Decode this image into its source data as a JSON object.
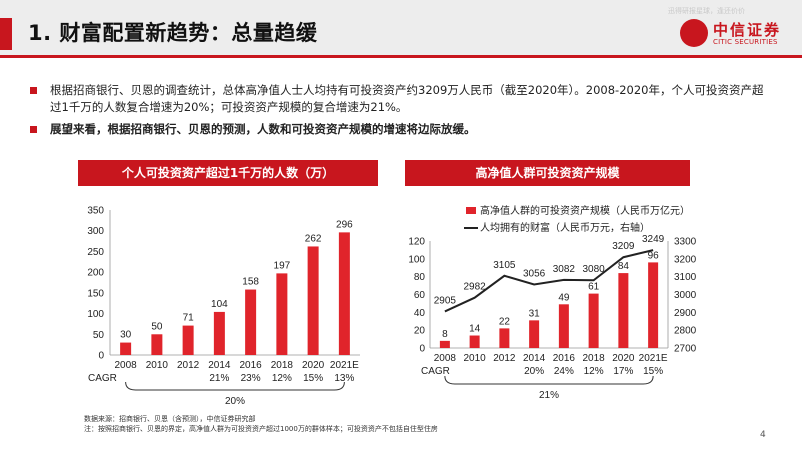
{
  "header": {
    "title": "1. 财富配置新趋势：总量趋缓",
    "watermark": "迅得研报星球，逢还价价",
    "logo_cn": "中信证券",
    "logo_en": "CITIC SECURITIES"
  },
  "bullets": [
    "根据招商银行、贝恩的调查统计，总体高净值人士人均持有可投资资产约3209万人民币（截至2020年）。2008-2020年，个人可投资资产超过1千万的人数复合增速为20%；可投资资产规模的复合增速为21%。",
    "展望来看，根据招商银行、贝恩的预测，人数和可投资资产规模的增速将边际放缓。"
  ],
  "chart_data": [
    {
      "type": "bar",
      "title": "个人可投资资产超过1千万的人数（万）",
      "categories": [
        "2008",
        "2010",
        "2012",
        "2014",
        "2016",
        "2018",
        "2020",
        "2021E"
      ],
      "values": [
        30,
        50,
        71,
        104,
        158,
        197,
        262,
        296
      ],
      "ylim": [
        0,
        350
      ],
      "yticks": [
        "0",
        "50",
        "100",
        "150",
        "200",
        "250",
        "300",
        "350"
      ],
      "color": "#e0242b",
      "cagr_label": "CAGR",
      "cagr_values": [
        "",
        "",
        "",
        "21%",
        "23%",
        "12%",
        "15%",
        "13%"
      ],
      "cagr_total": "20%"
    },
    {
      "type": "bar+line",
      "title": "高净值人群可投资资产规模",
      "categories": [
        "2008",
        "2010",
        "2012",
        "2014",
        "2016",
        "2018",
        "2020",
        "2021E"
      ],
      "series": [
        {
          "name": "高净值人群的可投资资产规模（人民币万亿元）",
          "type": "bar",
          "axis": "left",
          "values": [
            8,
            14,
            22,
            31,
            49,
            61,
            84,
            96
          ],
          "color": "#e0242b"
        },
        {
          "name": "人均拥有的财富（人民币万元，右轴）",
          "type": "line",
          "axis": "right",
          "values": [
            2905,
            2982,
            3105,
            3056,
            3082,
            3080,
            3209,
            3249
          ],
          "color": "#222222"
        }
      ],
      "ylim_left": [
        0,
        120
      ],
      "yticks_left": [
        "0",
        "20",
        "40",
        "60",
        "80",
        "100",
        "120"
      ],
      "ylim_right": [
        2700,
        3300
      ],
      "yticks_right": [
        "2700",
        "2800",
        "2900",
        "3000",
        "3100",
        "3200",
        "3300"
      ],
      "cagr_label": "CAGR",
      "cagr_values": [
        "",
        "",
        "",
        "20%",
        "24%",
        "12%",
        "17%",
        "15%"
      ],
      "cagr_total": "21%"
    }
  ],
  "footnotes": [
    "数据来源：招商银行、贝恩（含预测），中信证券研究部",
    "注：按照招商银行、贝恩的界定，高净值人群为可投资资产超过1000万的群体样本；可投资资产不包括自住型住房"
  ],
  "page_number": "4"
}
